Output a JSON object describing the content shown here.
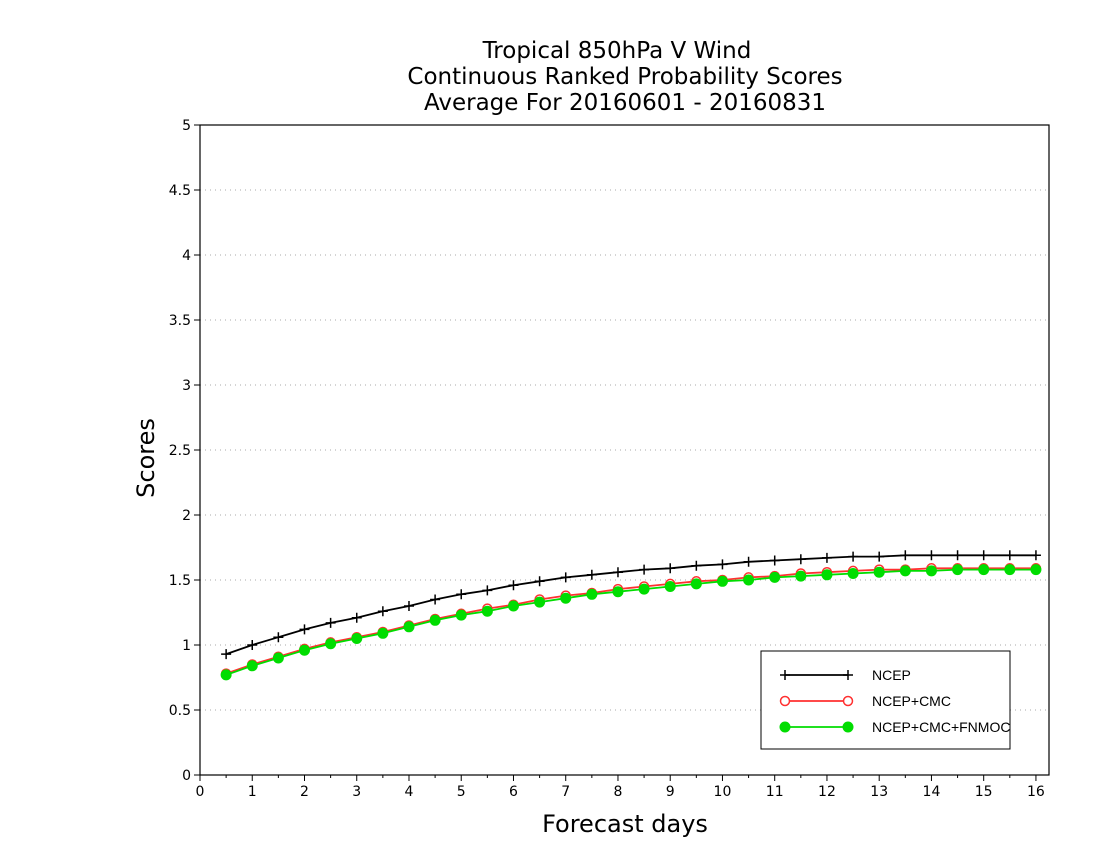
{
  "chart_data": {
    "type": "line",
    "title_lines": [
      "Tropical 850hPa V Wind",
      "Continuous Ranked Probability Scores",
      "Average For 20160601 - 20160831"
    ],
    "xlabel": "Forecast days",
    "ylabel": "Scores",
    "xlim": [
      0,
      16.25
    ],
    "ylim": [
      0,
      5
    ],
    "x_ticks": [
      0,
      1,
      2,
      3,
      4,
      5,
      6,
      7,
      8,
      9,
      10,
      11,
      12,
      13,
      14,
      15,
      16
    ],
    "y_ticks": [
      0,
      0.5,
      1,
      1.5,
      2,
      2.5,
      3,
      3.5,
      4,
      4.5,
      5
    ],
    "y_tick_labels": [
      "0",
      "0.5",
      "1",
      "1.5",
      "2",
      "2.5",
      "3",
      "3.5",
      "4",
      "4.5",
      "5"
    ],
    "grid": "horizontal dotted",
    "legend_position": "bottom-right",
    "x": [
      0.5,
      1,
      1.5,
      2,
      2.5,
      3,
      3.5,
      4,
      4.5,
      5,
      5.5,
      6,
      6.5,
      7,
      7.5,
      8,
      8.5,
      9,
      9.5,
      10,
      10.5,
      11,
      11.5,
      12,
      12.5,
      13,
      13.5,
      14,
      14.5,
      15,
      15.5,
      16
    ],
    "series": [
      {
        "name": "NCEP",
        "color": "#000000",
        "marker": "plus",
        "values": [
          0.93,
          1.0,
          1.06,
          1.12,
          1.17,
          1.21,
          1.26,
          1.3,
          1.35,
          1.39,
          1.42,
          1.46,
          1.49,
          1.52,
          1.54,
          1.56,
          1.58,
          1.59,
          1.61,
          1.62,
          1.64,
          1.65,
          1.66,
          1.67,
          1.68,
          1.68,
          1.69,
          1.69,
          1.69,
          1.69,
          1.69,
          1.69
        ]
      },
      {
        "name": "NCEP+CMC",
        "color": "#ff3030",
        "marker": "open-circle",
        "values": [
          0.78,
          0.85,
          0.91,
          0.97,
          1.02,
          1.06,
          1.1,
          1.15,
          1.2,
          1.24,
          1.28,
          1.31,
          1.35,
          1.38,
          1.4,
          1.43,
          1.45,
          1.47,
          1.49,
          1.5,
          1.52,
          1.53,
          1.55,
          1.56,
          1.57,
          1.58,
          1.58,
          1.59,
          1.59,
          1.59,
          1.59,
          1.59
        ]
      },
      {
        "name": "NCEP+CMC+FNMOC",
        "color": "#00dd00",
        "marker": "filled-circle",
        "values": [
          0.77,
          0.84,
          0.9,
          0.96,
          1.01,
          1.05,
          1.09,
          1.14,
          1.19,
          1.23,
          1.26,
          1.3,
          1.33,
          1.36,
          1.39,
          1.41,
          1.43,
          1.45,
          1.47,
          1.49,
          1.5,
          1.52,
          1.53,
          1.54,
          1.55,
          1.56,
          1.57,
          1.57,
          1.58,
          1.58,
          1.58,
          1.58
        ]
      }
    ]
  }
}
